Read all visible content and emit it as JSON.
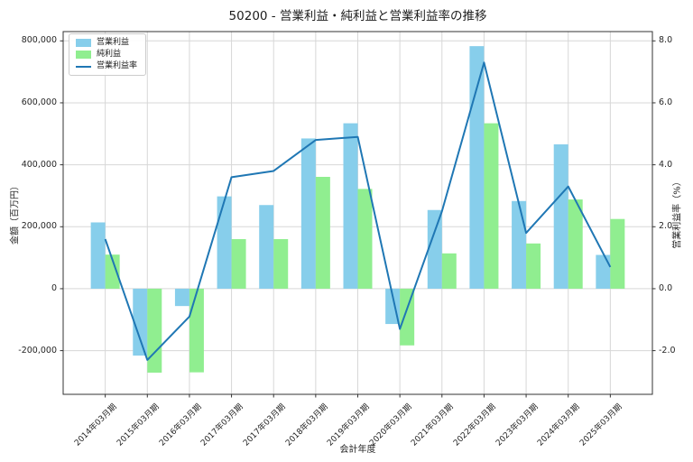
{
  "title": "50200 - 営業利益・純利益と営業利益率の推移",
  "chart_data": {
    "type": "bar+line combo",
    "title": "50200 - 営業利益・純利益と営業利益率の推移",
    "xlabel": "会計年度",
    "ylabel_left": "金額（百万円）",
    "ylabel_right": "営業利益率（%）",
    "grid": true,
    "legend_position": "upper left",
    "categories": [
      "2014年03月期",
      "2015年03月期",
      "2016年03月期",
      "2017年03月期",
      "2017年03月期",
      "2018年03月期",
      "2019年03月期",
      "2020年03月期",
      "2021年03月期",
      "2022年03月期",
      "2023年03月期",
      "2024年03月期",
      "2025年03月期"
    ],
    "series": [
      {
        "name": "営業利益",
        "type": "bar",
        "axis": "left",
        "color": "#87CEEB",
        "values": [
          214000,
          -216000,
          -56000,
          298000,
          270000,
          485000,
          534000,
          -114000,
          254000,
          783000,
          283000,
          466000,
          109000
        ]
      },
      {
        "name": "純利益",
        "type": "bar",
        "axis": "left",
        "color": "#90EE90",
        "values": [
          110000,
          -271000,
          -270000,
          160000,
          160000,
          361000,
          322000,
          -183000,
          114000,
          534000,
          146000,
          288000,
          225000
        ]
      },
      {
        "name": "営業利益率",
        "type": "line",
        "axis": "right",
        "color": "#1f77b4",
        "values": [
          1.6,
          -2.3,
          -0.9,
          3.6,
          3.8,
          4.8,
          4.9,
          -1.3,
          2.5,
          7.3,
          1.8,
          3.3,
          0.7
        ]
      }
    ],
    "yticks_left_labels": [
      "800,000",
      "600,000",
      "400,000",
      "200,000",
      "0",
      "-200,000"
    ],
    "yticks_left_values": [
      800000,
      600000,
      400000,
      200000,
      0,
      -200000
    ],
    "yticks_right_labels": [
      "8.0",
      "6.0",
      "4.0",
      "2.0",
      "0.0",
      "-2.0"
    ],
    "yticks_right_values": [
      8,
      6,
      4,
      2,
      0,
      -2
    ],
    "ylim_left": [
      -341000,
      830000
    ],
    "ylim_right": [
      -3.41,
      8.3
    ],
    "colors": {
      "grid": "#d7d7d7",
      "spine": "#333333",
      "tick_text": "#262626"
    }
  }
}
